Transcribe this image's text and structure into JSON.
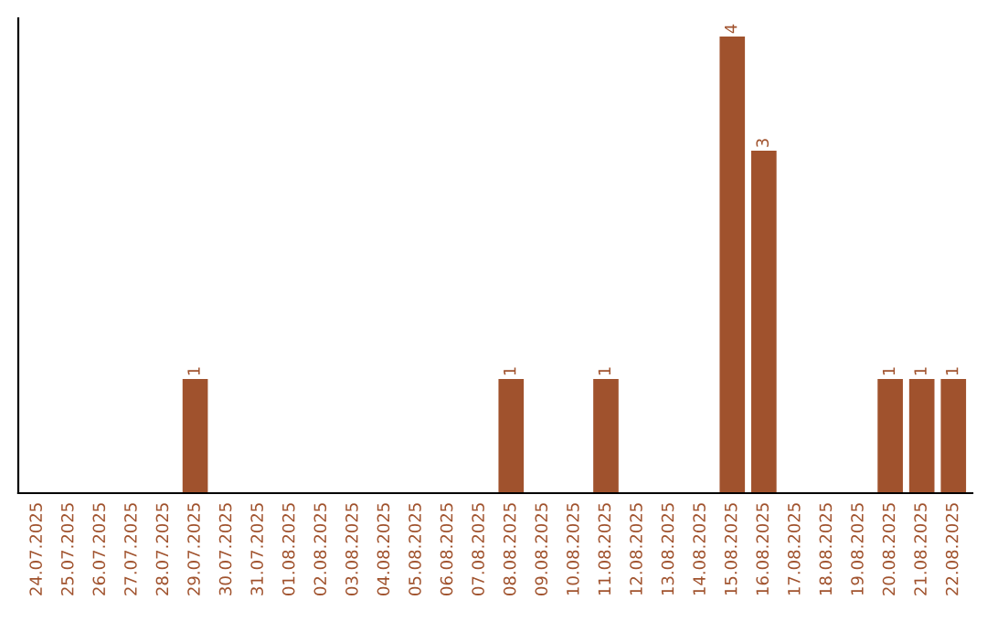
{
  "chart_data": {
    "type": "bar",
    "categories": [
      "24.07.2025",
      "25.07.2025",
      "26.07.2025",
      "27.07.2025",
      "28.07.2025",
      "29.07.2025",
      "30.07.2025",
      "31.07.2025",
      "01.08.2025",
      "02.08.2025",
      "03.08.2025",
      "04.08.2025",
      "05.08.2025",
      "06.08.2025",
      "07.08.2025",
      "08.08.2025",
      "09.08.2025",
      "10.08.2025",
      "11.08.2025",
      "12.08.2025",
      "13.08.2025",
      "14.08.2025",
      "15.08.2025",
      "16.08.2025",
      "17.08.2025",
      "18.08.2025",
      "19.08.2025",
      "20.08.2025",
      "21.08.2025",
      "22.08.2025"
    ],
    "values": [
      0,
      0,
      0,
      0,
      0,
      1,
      0,
      0,
      0,
      0,
      0,
      0,
      0,
      0,
      0,
      1,
      0,
      0,
      1,
      0,
      0,
      0,
      4,
      3,
      0,
      0,
      0,
      1,
      1,
      1
    ],
    "value_labels": [
      null,
      null,
      null,
      null,
      null,
      "1",
      null,
      null,
      null,
      null,
      null,
      null,
      null,
      null,
      null,
      "1",
      null,
      null,
      "1",
      null,
      null,
      null,
      "4",
      "3",
      null,
      null,
      null,
      "1",
      "1",
      "1"
    ],
    "color": "#a0522d",
    "tick_labels": "x",
    "grid": false,
    "legend": false
  }
}
